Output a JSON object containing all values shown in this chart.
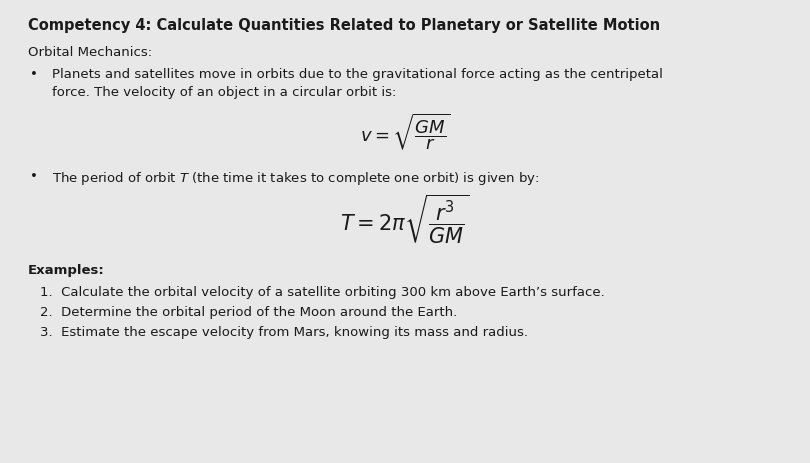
{
  "title": "Competency 4: Calculate Quantities Related to Planetary or Satellite Motion",
  "subtitle": "Orbital Mechanics:",
  "bullet1_text": "Planets and satellites move in orbits due to the gravitational force acting as the centripetal\nforce. The velocity of an object in a circular orbit is:",
  "formula1": "$v = \\sqrt{\\dfrac{GM}{r}}$",
  "bullet2_text": "The period of orbit $T$ (the time it takes to complete one orbit) is given by:",
  "formula2": "$T = 2\\pi\\sqrt{\\dfrac{r^3}{GM}}$",
  "examples_title": "Examples:",
  "example1": "1.  Calculate the orbital velocity of a satellite orbiting 300 km above Earth’s surface.",
  "example2": "2.  Determine the orbital period of the Moon around the Earth.",
  "example3": "3.  Estimate the escape velocity from Mars, knowing its mass and radius.",
  "bg_color": "#e8e8e8",
  "text_color": "#1a1a1a",
  "title_fontsize": 10.5,
  "body_fontsize": 9.5,
  "formula_fontsize": 13,
  "examples_fontsize": 9.5
}
